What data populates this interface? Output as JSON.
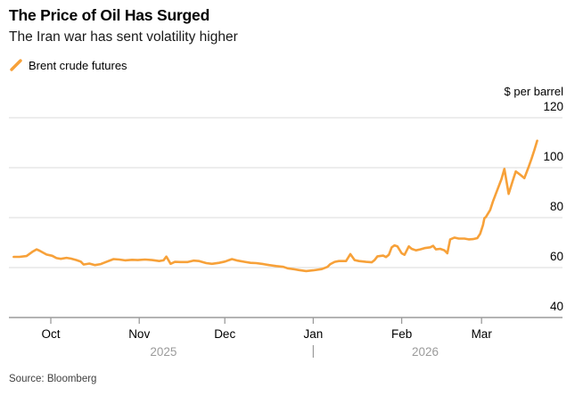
{
  "chart_data": {
    "type": "line",
    "title": "The Price of Oil Has Surged",
    "subtitle": "The Iran war has sent volatility higher",
    "legend": [
      {
        "label": "Brent crude futures",
        "color": "#F7A139"
      }
    ],
    "source": "Source: Bloomberg",
    "colors": {
      "accent": "#F7A139",
      "grid": "#DBDBDB",
      "axis": "#9B9B9B",
      "muted_text": "#9B9B9B",
      "text": "#000000",
      "source_text": "#3F3F3F"
    },
    "y_axis": {
      "label": "$ per barrel",
      "ticks": [
        40,
        60,
        80,
        100,
        120
      ],
      "range": [
        40,
        120
      ],
      "side": "right",
      "grid": true
    },
    "x_axis": {
      "unit": "days from Oct 1, 2025",
      "months": [
        {
          "label": "Oct",
          "day": 0
        },
        {
          "label": "Nov",
          "day": 31
        },
        {
          "label": "Dec",
          "day": 61
        },
        {
          "label": "Jan",
          "day": 92
        },
        {
          "label": "Feb",
          "day": 123
        },
        {
          "label": "Mar",
          "day": 151
        }
      ],
      "years": [
        {
          "label": "2025"
        },
        {
          "label": "2026"
        }
      ],
      "year_boundary_day": 92
    },
    "series": [
      {
        "name": "Brent crude futures",
        "color": "#F7A139",
        "points": [
          [
            -13,
            64.3
          ],
          [
            -11,
            64.3
          ],
          [
            -8.5,
            64.6
          ],
          [
            -6.5,
            66.3
          ],
          [
            -5,
            67.3
          ],
          [
            -4,
            66.8
          ],
          [
            -1.5,
            65.2
          ],
          [
            0.5,
            64.7
          ],
          [
            2,
            63.8
          ],
          [
            3.5,
            63.5
          ],
          [
            5.5,
            63.9
          ],
          [
            7,
            63.6
          ],
          [
            9,
            63.0
          ],
          [
            10.5,
            62.4
          ],
          [
            11.5,
            61.2
          ],
          [
            13.5,
            61.6
          ],
          [
            15.5,
            61.0
          ],
          [
            17.5,
            61.4
          ],
          [
            19.5,
            62.3
          ],
          [
            22,
            63.4
          ],
          [
            24,
            63.2
          ],
          [
            26,
            62.9
          ],
          [
            28.5,
            63.1
          ],
          [
            30.5,
            63.0
          ],
          [
            33,
            63.2
          ],
          [
            35.5,
            63.0
          ],
          [
            38,
            62.6
          ],
          [
            39.5,
            62.9
          ],
          [
            40.5,
            64.4
          ],
          [
            42,
            61.5
          ],
          [
            43.5,
            62.3
          ],
          [
            45.5,
            62.2
          ],
          [
            48,
            62.2
          ],
          [
            50,
            62.8
          ],
          [
            52,
            62.6
          ],
          [
            54.5,
            61.8
          ],
          [
            56.5,
            61.5
          ],
          [
            59,
            61.9
          ],
          [
            61,
            62.4
          ],
          [
            63.5,
            63.4
          ],
          [
            65.5,
            62.8
          ],
          [
            68,
            62.3
          ],
          [
            70,
            61.9
          ],
          [
            72,
            61.8
          ],
          [
            74.5,
            61.4
          ],
          [
            76.5,
            61.0
          ],
          [
            79,
            60.6
          ],
          [
            81.5,
            60.3
          ],
          [
            83,
            59.7
          ],
          [
            85.5,
            59.3
          ],
          [
            87,
            59.0
          ],
          [
            89.5,
            58.6
          ],
          [
            92,
            58.9
          ],
          [
            95,
            59.4
          ],
          [
            97,
            60.3
          ],
          [
            98,
            61.4
          ],
          [
            99.5,
            62.3
          ],
          [
            101,
            62.6
          ],
          [
            103.5,
            62.6
          ],
          [
            105,
            65.4
          ],
          [
            106.5,
            63.0
          ],
          [
            108,
            62.6
          ],
          [
            110.5,
            62.3
          ],
          [
            112.5,
            62.1
          ],
          [
            113.5,
            63.0
          ],
          [
            114.5,
            64.5
          ],
          [
            116.5,
            64.8
          ],
          [
            117.5,
            64.2
          ],
          [
            118.5,
            65.1
          ],
          [
            119.5,
            68.1
          ],
          [
            120.5,
            68.9
          ],
          [
            121.5,
            68.5
          ],
          [
            123,
            65.7
          ],
          [
            124,
            65.1
          ],
          [
            125.5,
            68.5
          ],
          [
            126.5,
            67.5
          ],
          [
            128,
            66.9
          ],
          [
            129.5,
            67.3
          ],
          [
            131,
            67.8
          ],
          [
            133,
            68.1
          ],
          [
            134,
            68.7
          ],
          [
            135,
            67.3
          ],
          [
            136.5,
            67.5
          ],
          [
            138,
            66.9
          ],
          [
            139,
            65.7
          ],
          [
            140,
            71.3
          ],
          [
            141.5,
            72.0
          ],
          [
            143,
            71.6
          ],
          [
            145,
            71.6
          ],
          [
            146.5,
            71.3
          ],
          [
            148,
            71.4
          ],
          [
            149.5,
            71.8
          ],
          [
            150.5,
            73.5
          ],
          [
            151.5,
            77.0
          ],
          [
            152,
            79.8
          ],
          [
            152.5,
            80.2
          ],
          [
            154,
            83.0
          ],
          [
            155,
            86.5
          ],
          [
            156.5,
            91.0
          ],
          [
            158,
            95.5
          ],
          [
            159,
            99.5
          ],
          [
            160.5,
            89.5
          ],
          [
            162,
            95.0
          ],
          [
            163,
            98.5
          ],
          [
            164.5,
            97.2
          ],
          [
            166,
            95.8
          ],
          [
            167.5,
            100.3
          ],
          [
            168.5,
            103.5
          ],
          [
            169.5,
            107.0
          ],
          [
            170.5,
            110.8
          ]
        ]
      }
    ]
  }
}
